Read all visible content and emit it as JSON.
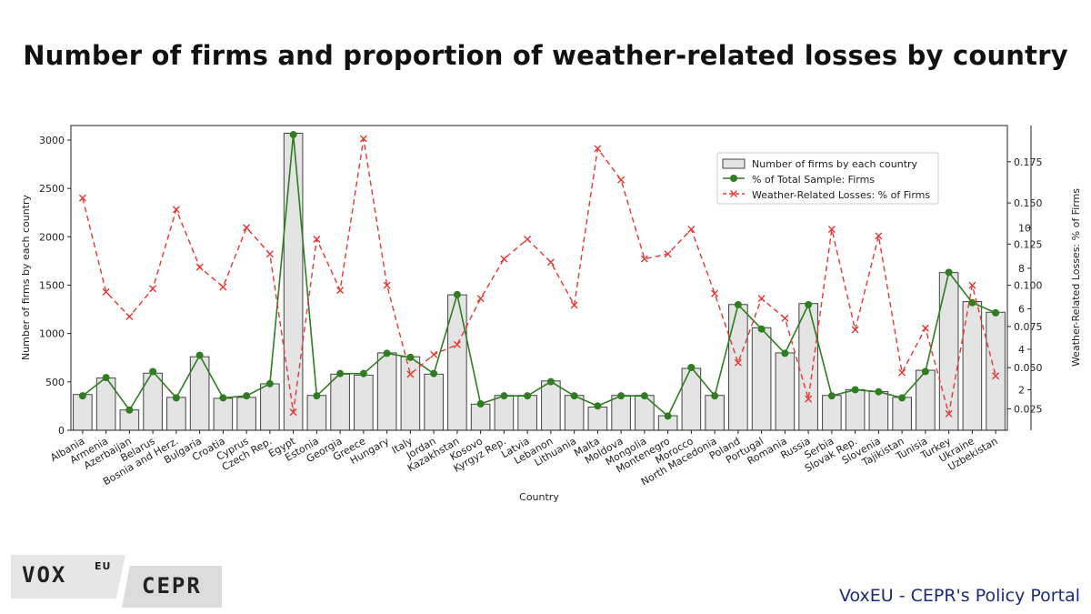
{
  "page": {
    "title": "Number of firms and proportion of weather-related losses by country",
    "footer": "VoxEU - CEPR's Policy Portal",
    "logo": {
      "vox": "VOX",
      "eu": "EU",
      "cepr": "CEPR"
    }
  },
  "colors": {
    "bar_fill": "#e4e4e4",
    "bar_edge": "#444444",
    "green": "#2e7d1f",
    "red": "#e53935",
    "axis": "#222222",
    "footer": "#1c2a7a"
  },
  "chart_data": {
    "type": "bar",
    "title": "Number of firms and proportion of weather-related losses by country",
    "xlabel": "Country",
    "ylabel": "Number of firms by each country",
    "ylim": [
      0,
      3150
    ],
    "yticks": [
      0,
      500,
      1000,
      1500,
      2000,
      2500,
      3000
    ],
    "categories": [
      "Albania",
      "Armenia",
      "Azerbaijan",
      "Belarus",
      "Bosnia and Herz.",
      "Bulgaria",
      "Croatia",
      "Cyprus",
      "Czech Rep.",
      "Egypt",
      "Estonia",
      "Georgia",
      "Greece",
      "Hungary",
      "Italy",
      "Jordan",
      "Kazakhstan",
      "Kosovo",
      "Kyrgyz Rep.",
      "Latvia",
      "Lebanon",
      "Lithuania",
      "Malta",
      "Moldova",
      "Mongolia",
      "Montenegro",
      "Morocco",
      "North Macedonia",
      "Poland",
      "Portugal",
      "Romania",
      "Russia",
      "Serbia",
      "Slovak Rep.",
      "Slovenia",
      "Tajikistan",
      "Tunisia",
      "Turkey",
      "Ukraine",
      "Uzbekistan"
    ],
    "series": [
      {
        "name": "Number of firms by each country",
        "type": "bar",
        "axis": "left",
        "values": [
          370,
          540,
          210,
          590,
          340,
          760,
          330,
          340,
          480,
          3070,
          360,
          580,
          570,
          800,
          760,
          580,
          1400,
          270,
          360,
          360,
          510,
          360,
          240,
          360,
          360,
          150,
          640,
          360,
          1300,
          1060,
          800,
          1310,
          360,
          420,
          400,
          340,
          620,
          1630,
          1330,
          1220
        ]
      },
      {
        "name": "% of Total Sample: Firms",
        "type": "line",
        "axis": "right_outer",
        "marker": "circle",
        "values": [
          1.7,
          2.6,
          1.0,
          2.9,
          1.6,
          3.7,
          1.6,
          1.7,
          2.3,
          14.6,
          1.7,
          2.8,
          2.8,
          3.8,
          3.6,
          2.8,
          6.7,
          1.3,
          1.7,
          1.7,
          2.4,
          1.7,
          1.2,
          1.7,
          1.7,
          0.7,
          3.1,
          1.7,
          6.2,
          5.0,
          3.8,
          6.2,
          1.7,
          2.0,
          1.9,
          1.6,
          2.9,
          7.8,
          6.3,
          5.8
        ]
      },
      {
        "name": "Weather-Related Losses: % of Firms",
        "type": "line",
        "axis": "right_inner",
        "marker": "x",
        "dashed": true,
        "values": [
          0.153,
          0.096,
          0.081,
          0.098,
          0.146,
          0.111,
          0.099,
          0.135,
          0.119,
          0.023,
          0.128,
          0.097,
          0.189,
          0.1,
          0.046,
          0.058,
          0.064,
          0.092,
          0.116,
          0.128,
          0.114,
          0.088,
          0.183,
          0.164,
          0.116,
          0.119,
          0.134,
          0.095,
          0.053,
          0.092,
          0.08,
          0.031,
          0.134,
          0.073,
          0.13,
          0.047,
          0.074,
          0.022,
          0.1,
          0.045
        ]
      }
    ],
    "right_inner_axis": {
      "label": "Weather-Related Losses: % of Firms",
      "ylim": [
        0.012,
        0.197
      ],
      "ticks": [
        0.025,
        0.05,
        0.075,
        0.1,
        0.125,
        0.15,
        0.175
      ],
      "tick_labels": [
        "0.025",
        "0.050",
        "0.075",
        "0.100",
        "0.125",
        "0.150",
        "0.175"
      ]
    },
    "right_outer_axis": {
      "ylim": [
        0,
        15.05
      ],
      "ticks": [
        2,
        4,
        6,
        8,
        10
      ],
      "tick_labels": [
        "2",
        "4",
        "6",
        "8",
        "10"
      ]
    },
    "legend": {
      "position": "upper-right",
      "entries": [
        "Number of firms by each country",
        "% of Total Sample: Firms",
        "Weather-Related Losses: % of Firms"
      ]
    }
  }
}
